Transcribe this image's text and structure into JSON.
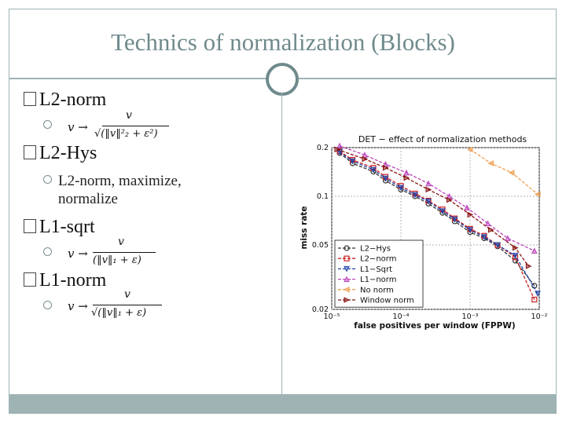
{
  "slide": {
    "title": "Technics of normalization (Blocks)",
    "bullets": [
      {
        "label": "L2-norm"
      },
      {
        "label": "L2-Hys",
        "sub": "L2-norm, maximize,",
        "sub2": "normalize"
      },
      {
        "label": "L1-sqrt"
      },
      {
        "label": "L1-norm"
      }
    ],
    "formulas": {
      "l2norm_num": "v",
      "l2norm_arrow": "v →",
      "l2norm_den": "√(‖v‖²₂ + ε²)",
      "l1sqrt_num": "v",
      "l1sqrt_arrow": "v →",
      "l1sqrt_den": "(‖v‖₁ + ε)",
      "l1norm_num": "v",
      "l1norm_arrow": "v →",
      "l1norm_den": "√(‖v‖₁ + ε)"
    }
  },
  "chart_data": {
    "type": "line",
    "title": "DET − effect of normalization methods",
    "xlabel": "false positives per window (FPPW)",
    "ylabel": "miss rate",
    "xscale": "log",
    "yscale": "log",
    "xlim": [
      1e-05,
      0.01
    ],
    "ylim": [
      0.02,
      0.2
    ],
    "xticks": [
      "10⁻⁵",
      "10⁻⁴",
      "10⁻³",
      "10⁻²"
    ],
    "xtick_values": [
      1e-05,
      0.0001,
      0.001,
      0.01
    ],
    "yticks": [
      "0.2",
      "0.1",
      "0.05",
      "0.02"
    ],
    "ytick_values": [
      0.2,
      0.1,
      0.05,
      0.02
    ],
    "legend_position": "lower-left",
    "series": [
      {
        "name": "L2−Hys",
        "color": "#333333",
        "marker": "circle",
        "x": [
          1.3e-05,
          2e-05,
          4e-05,
          6e-05,
          0.0001,
          0.00016,
          0.00025,
          0.0004,
          0.0006,
          0.001,
          0.0016,
          0.0025,
          0.0045,
          0.0085
        ],
        "y": [
          0.185,
          0.16,
          0.142,
          0.125,
          0.11,
          0.1,
          0.09,
          0.079,
          0.07,
          0.06,
          0.055,
          0.049,
          0.04,
          0.028
        ]
      },
      {
        "name": "L2−norm",
        "color": "#cc2222",
        "marker": "square",
        "x": [
          1.3e-05,
          2e-05,
          4e-05,
          6e-05,
          0.0001,
          0.00016,
          0.00025,
          0.0004,
          0.0006,
          0.001,
          0.0016,
          0.0025,
          0.0045,
          0.0085
        ],
        "y": [
          0.19,
          0.168,
          0.15,
          0.132,
          0.116,
          0.104,
          0.094,
          0.083,
          0.073,
          0.063,
          0.057,
          0.05,
          0.042,
          0.023
        ]
      },
      {
        "name": "L1−Sqrt",
        "color": "#2244aa",
        "marker": "triangle-down",
        "x": [
          1.3e-05,
          2e-05,
          4e-05,
          6e-05,
          0.0001,
          0.00016,
          0.00025,
          0.0004,
          0.0006,
          0.001,
          0.0016,
          0.0025,
          0.0045,
          0.0095
        ],
        "y": [
          0.188,
          0.165,
          0.146,
          0.129,
          0.113,
          0.102,
          0.093,
          0.081,
          0.072,
          0.062,
          0.056,
          0.05,
          0.043,
          0.025
        ]
      },
      {
        "name": "L1−norm",
        "color": "#bb44bb",
        "marker": "triangle-up",
        "x": [
          1.3e-05,
          3e-05,
          6e-05,
          0.00012,
          0.00025,
          0.0005,
          0.0009,
          0.0018,
          0.0035,
          0.0085
        ],
        "y": [
          0.205,
          0.18,
          0.158,
          0.14,
          0.12,
          0.1,
          0.085,
          0.068,
          0.055,
          0.046
        ]
      },
      {
        "name": "No norm",
        "color": "#f0a050",
        "marker": "triangle-left",
        "x": [
          0.001,
          0.002,
          0.004,
          0.0095
        ],
        "y": [
          0.195,
          0.16,
          0.14,
          0.103
        ]
      },
      {
        "name": "Window norm",
        "color": "#881111",
        "marker": "triangle-right",
        "x": [
          1.2e-05,
          3e-05,
          6e-05,
          0.00012,
          0.00025,
          0.0005,
          0.001,
          0.002,
          0.0045,
          0.007
        ],
        "y": [
          0.195,
          0.17,
          0.15,
          0.13,
          0.11,
          0.095,
          0.077,
          0.062,
          0.048,
          0.037
        ]
      }
    ]
  }
}
